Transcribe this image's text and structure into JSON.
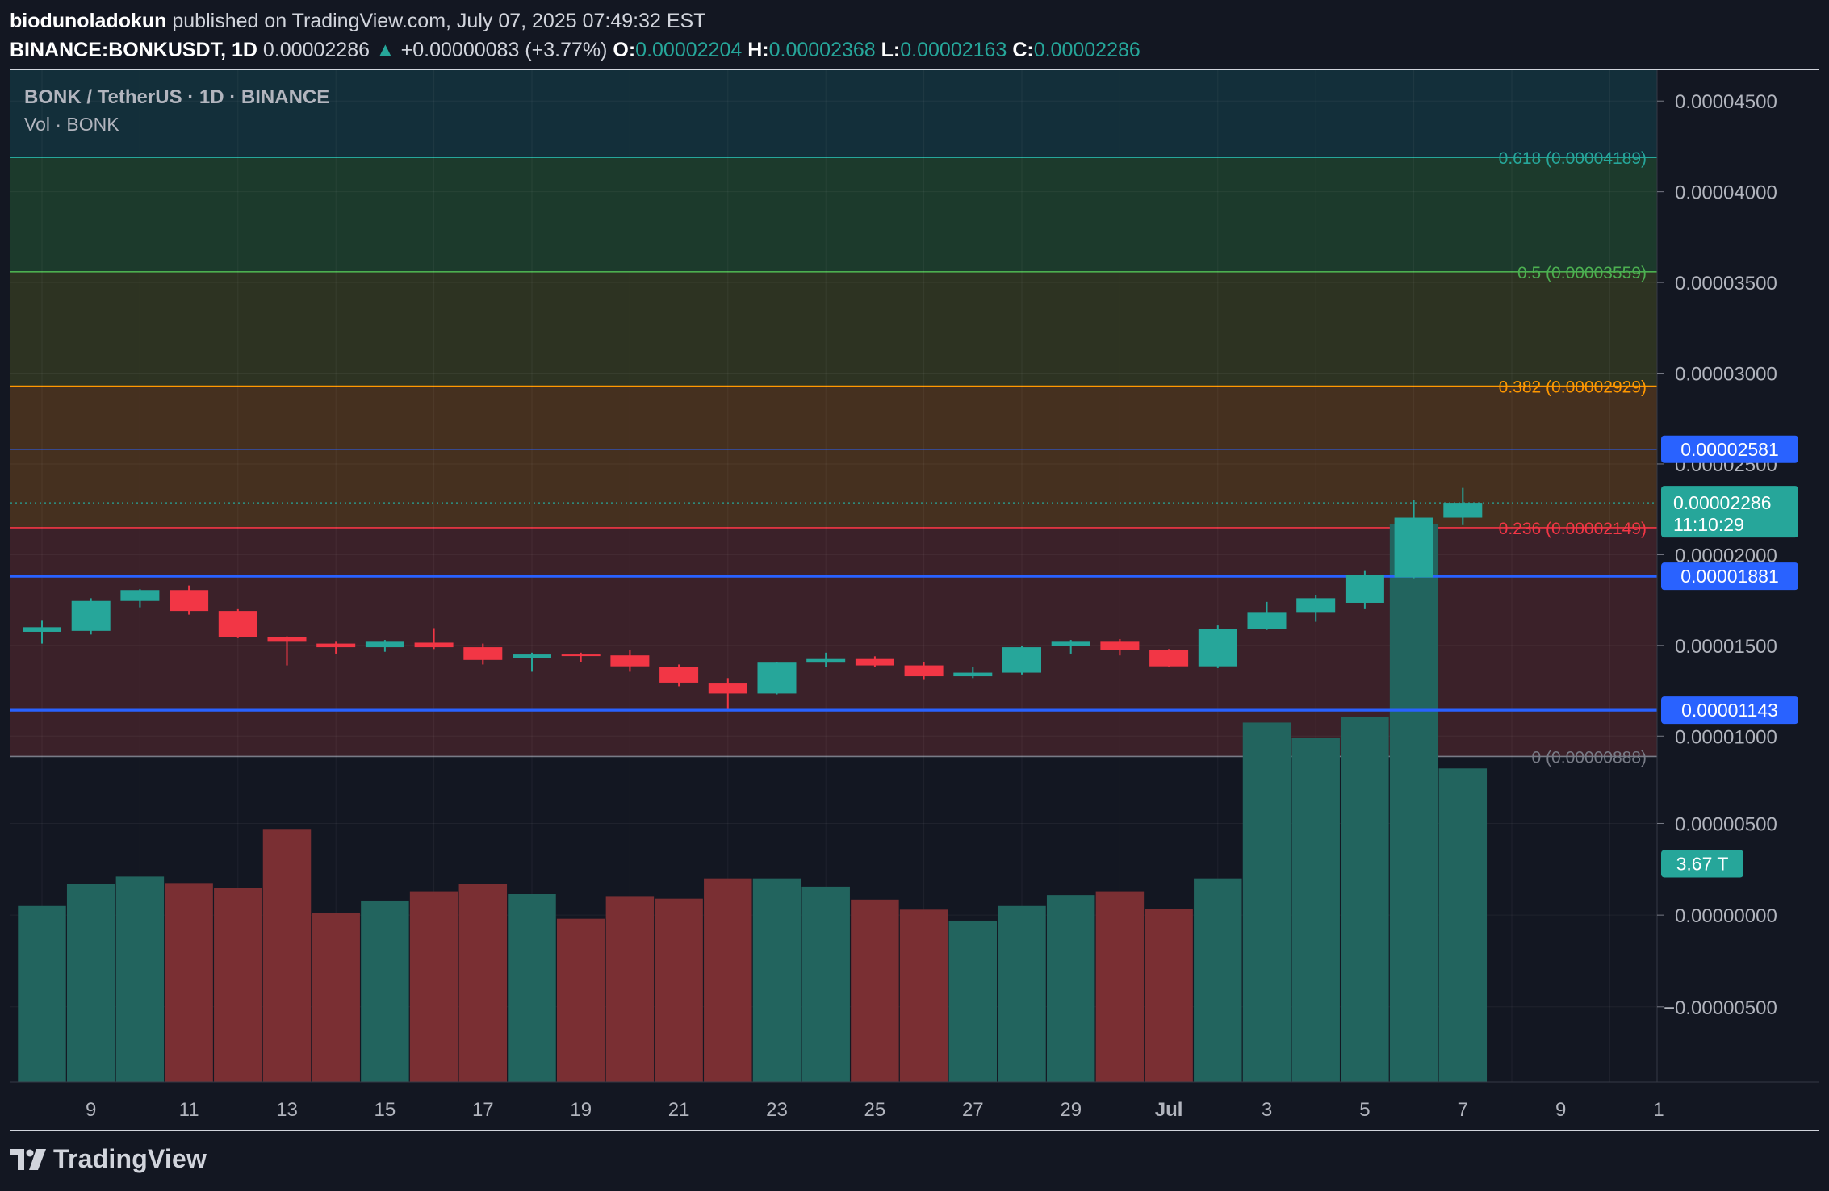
{
  "header": {
    "author": "biodunoladokun",
    "published": "published on TradingView.com, July 07, 2025 07:49:32 EST",
    "symbol": "BINANCE:BONKUSDT, 1D",
    "price": "0.00002286",
    "change": "+0.00000083 (+3.77%)",
    "o_label": "O:",
    "o_value": "0.00002204",
    "h_label": "H:",
    "h_value": "0.00002368",
    "l_label": "L:",
    "l_value": "0.00002163",
    "c_label": "C:",
    "c_value": "0.00002286"
  },
  "legend": {
    "title": "BONK / TetherUS · 1D · BINANCE",
    "volume": "Vol · BONK"
  },
  "footer": {
    "brand": "TradingView"
  },
  "colors": {
    "up": "#26a69a",
    "down": "#f23645",
    "vol_up": "#22645e",
    "vol_down": "#7a2f33",
    "marker": "#2962ff"
  },
  "chart_data": {
    "type": "candlestick",
    "price_ylim": [
      8.5e-06,
      4.67e-05
    ],
    "price_ticks": [
      "0.00004500",
      "0.00004000",
      "0.00003500",
      "0.00003000",
      "0.00002500",
      "0.00002000",
      "0.00001500",
      "0.00001000"
    ],
    "volume_ticks": [
      "0.00000500",
      "0.00000000",
      "−0.00000500"
    ],
    "volume_tick_values": [
      5e-06,
      0,
      -5e-06
    ],
    "volume_ylim": [
      -9.1e-06,
      8.1e-06
    ],
    "x_ticks": [
      {
        "label": "9",
        "i": 1
      },
      {
        "label": "11",
        "i": 3
      },
      {
        "label": "13",
        "i": 5
      },
      {
        "label": "15",
        "i": 7
      },
      {
        "label": "17",
        "i": 9
      },
      {
        "label": "19",
        "i": 11
      },
      {
        "label": "21",
        "i": 13
      },
      {
        "label": "23",
        "i": 15
      },
      {
        "label": "25",
        "i": 17
      },
      {
        "label": "27",
        "i": 19
      },
      {
        "label": "29",
        "i": 21
      },
      {
        "label": "Jul",
        "i": 23
      },
      {
        "label": "3",
        "i": 25
      },
      {
        "label": "5",
        "i": 27
      },
      {
        "label": "7",
        "i": 29
      },
      {
        "label": "9",
        "i": 31
      },
      {
        "label": "1",
        "i": 33
      }
    ],
    "candles": [
      {
        "date": "2025-06-08",
        "o": 1.575e-05,
        "h": 1.64e-05,
        "l": 1.51e-05,
        "c": 1.6e-05
      },
      {
        "date": "2025-06-09",
        "o": 1.58e-05,
        "h": 1.76e-05,
        "l": 1.56e-05,
        "c": 1.745e-05
      },
      {
        "date": "2025-06-10",
        "o": 1.745e-05,
        "h": 1.81e-05,
        "l": 1.71e-05,
        "c": 1.805e-05
      },
      {
        "date": "2025-06-11",
        "o": 1.805e-05,
        "h": 1.83e-05,
        "l": 1.67e-05,
        "c": 1.69e-05
      },
      {
        "date": "2025-06-12",
        "o": 1.69e-05,
        "h": 1.7e-05,
        "l": 1.54e-05,
        "c": 1.545e-05
      },
      {
        "date": "2025-06-13",
        "o": 1.545e-05,
        "h": 1.55e-05,
        "l": 1.39e-05,
        "c": 1.52e-05
      },
      {
        "date": "2025-06-14",
        "o": 1.51e-05,
        "h": 1.52e-05,
        "l": 1.455e-05,
        "c": 1.49e-05
      },
      {
        "date": "2025-06-15",
        "o": 1.49e-05,
        "h": 1.53e-05,
        "l": 1.465e-05,
        "c": 1.52e-05
      },
      {
        "date": "2025-06-16",
        "o": 1.515e-05,
        "h": 1.595e-05,
        "l": 1.48e-05,
        "c": 1.49e-05
      },
      {
        "date": "2025-06-17",
        "o": 1.49e-05,
        "h": 1.51e-05,
        "l": 1.395e-05,
        "c": 1.42e-05
      },
      {
        "date": "2025-06-18",
        "o": 1.43e-05,
        "h": 1.46e-05,
        "l": 1.355e-05,
        "c": 1.45e-05
      },
      {
        "date": "2025-06-19",
        "o": 1.45e-05,
        "h": 1.46e-05,
        "l": 1.41e-05,
        "c": 1.445e-05
      },
      {
        "date": "2025-06-20",
        "o": 1.445e-05,
        "h": 1.475e-05,
        "l": 1.355e-05,
        "c": 1.385e-05
      },
      {
        "date": "2025-06-21",
        "o": 1.38e-05,
        "h": 1.395e-05,
        "l": 1.275e-05,
        "c": 1.295e-05
      },
      {
        "date": "2025-06-22",
        "o": 1.29e-05,
        "h": 1.32e-05,
        "l": 1.15e-05,
        "c": 1.235e-05
      },
      {
        "date": "2025-06-23",
        "o": 1.235e-05,
        "h": 1.41e-05,
        "l": 1.23e-05,
        "c": 1.405e-05
      },
      {
        "date": "2025-06-24",
        "o": 1.405e-05,
        "h": 1.46e-05,
        "l": 1.38e-05,
        "c": 1.425e-05
      },
      {
        "date": "2025-06-25",
        "o": 1.425e-05,
        "h": 1.44e-05,
        "l": 1.38e-05,
        "c": 1.39e-05
      },
      {
        "date": "2025-06-26",
        "o": 1.39e-05,
        "h": 1.41e-05,
        "l": 1.31e-05,
        "c": 1.33e-05
      },
      {
        "date": "2025-06-27",
        "o": 1.33e-05,
        "h": 1.38e-05,
        "l": 1.32e-05,
        "c": 1.35e-05
      },
      {
        "date": "2025-06-28",
        "o": 1.35e-05,
        "h": 1.495e-05,
        "l": 1.34e-05,
        "c": 1.49e-05
      },
      {
        "date": "2025-06-29",
        "o": 1.495e-05,
        "h": 1.53e-05,
        "l": 1.455e-05,
        "c": 1.52e-05
      },
      {
        "date": "2025-06-30",
        "o": 1.52e-05,
        "h": 1.535e-05,
        "l": 1.445e-05,
        "c": 1.475e-05
      },
      {
        "date": "2025-07-01",
        "o": 1.475e-05,
        "h": 1.48e-05,
        "l": 1.38e-05,
        "c": 1.385e-05
      },
      {
        "date": "2025-07-02",
        "o": 1.385e-05,
        "h": 1.61e-05,
        "l": 1.375e-05,
        "c": 1.59e-05
      },
      {
        "date": "2025-07-03",
        "o": 1.59e-05,
        "h": 1.74e-05,
        "l": 1.585e-05,
        "c": 1.68e-05
      },
      {
        "date": "2025-07-04",
        "o": 1.68e-05,
        "h": 1.775e-05,
        "l": 1.63e-05,
        "c": 1.76e-05
      },
      {
        "date": "2025-07-05",
        "o": 1.735e-05,
        "h": 1.91e-05,
        "l": 1.7e-05,
        "c": 1.89e-05
      },
      {
        "date": "2025-07-06",
        "o": 1.875e-05,
        "h": 2.3e-05,
        "l": 1.87e-05,
        "c": 2.204e-05
      },
      {
        "date": "2025-07-07",
        "o": 2.204e-05,
        "h": 2.368e-05,
        "l": 2.163e-05,
        "c": 2.286e-05
      }
    ],
    "volume": [
      {
        "v": 5e-07,
        "dir": "up"
      },
      {
        "v": 1.7e-06,
        "dir": "up"
      },
      {
        "v": 2.1e-06,
        "dir": "up"
      },
      {
        "v": 1.75e-06,
        "dir": "down"
      },
      {
        "v": 1.5e-06,
        "dir": "down"
      },
      {
        "v": 4.7e-06,
        "dir": "down"
      },
      {
        "v": 1e-07,
        "dir": "down"
      },
      {
        "v": 8e-07,
        "dir": "up"
      },
      {
        "v": 1.3e-06,
        "dir": "down"
      },
      {
        "v": 1.7e-06,
        "dir": "down"
      },
      {
        "v": 1.15e-06,
        "dir": "up"
      },
      {
        "v": -2e-07,
        "dir": "down"
      },
      {
        "v": 1e-06,
        "dir": "down"
      },
      {
        "v": 9e-07,
        "dir": "down"
      },
      {
        "v": 2e-06,
        "dir": "down"
      },
      {
        "v": 2e-06,
        "dir": "up"
      },
      {
        "v": 1.55e-06,
        "dir": "up"
      },
      {
        "v": 8.5e-07,
        "dir": "down"
      },
      {
        "v": 3e-07,
        "dir": "down"
      },
      {
        "v": -3e-07,
        "dir": "up"
      },
      {
        "v": 5e-07,
        "dir": "up"
      },
      {
        "v": 1.1e-06,
        "dir": "up"
      },
      {
        "v": 1.3e-06,
        "dir": "down"
      },
      {
        "v": 3.5e-07,
        "dir": "down"
      },
      {
        "v": 2e-06,
        "dir": "up"
      },
      {
        "v": 1.05e-05,
        "dir": "up"
      },
      {
        "v": 9.65e-06,
        "dir": "up"
      },
      {
        "v": 1.08e-05,
        "dir": "up"
      },
      {
        "v": 2.13e-05,
        "dir": "up"
      },
      {
        "v": 8e-06,
        "dir": "up"
      }
    ],
    "volume_label": "3.67 T",
    "volume_label_value": 2.8e-06,
    "fib_levels": [
      {
        "ratio": "0.618",
        "label": "0.618 (0.00004189)",
        "value": 4.189e-05,
        "color": "#26a69a",
        "fill": "#123d3b"
      },
      {
        "ratio": "0.5",
        "label": "0.5 (0.00003559)",
        "value": 3.559e-05,
        "color": "#4caf50",
        "fill": "#1c3a2c"
      },
      {
        "ratio": "0.382",
        "label": "0.382 (0.00002929)",
        "value": 2.929e-05,
        "color": "#ff9800",
        "fill": "#2d3322"
      },
      {
        "ratio": "0.236",
        "label": "0.236 (0.00002149)",
        "value": 2.149e-05,
        "color": "#f23645",
        "fill": "#45301f"
      },
      {
        "ratio": "0",
        "label": "0 (0.00000888)",
        "value": 8.88e-06,
        "color": "#787b86",
        "fill": "#3d2228"
      }
    ],
    "horizontal_lines": [
      {
        "value": 2.581e-05,
        "label": "0.00002581"
      },
      {
        "value": 1.881e-05,
        "label": "0.00001881"
      },
      {
        "value": 1.143e-05,
        "label": "0.00001143"
      }
    ],
    "last_price": {
      "value": 2.286e-05,
      "label": "0.00002286",
      "countdown": "11:10:29"
    }
  }
}
